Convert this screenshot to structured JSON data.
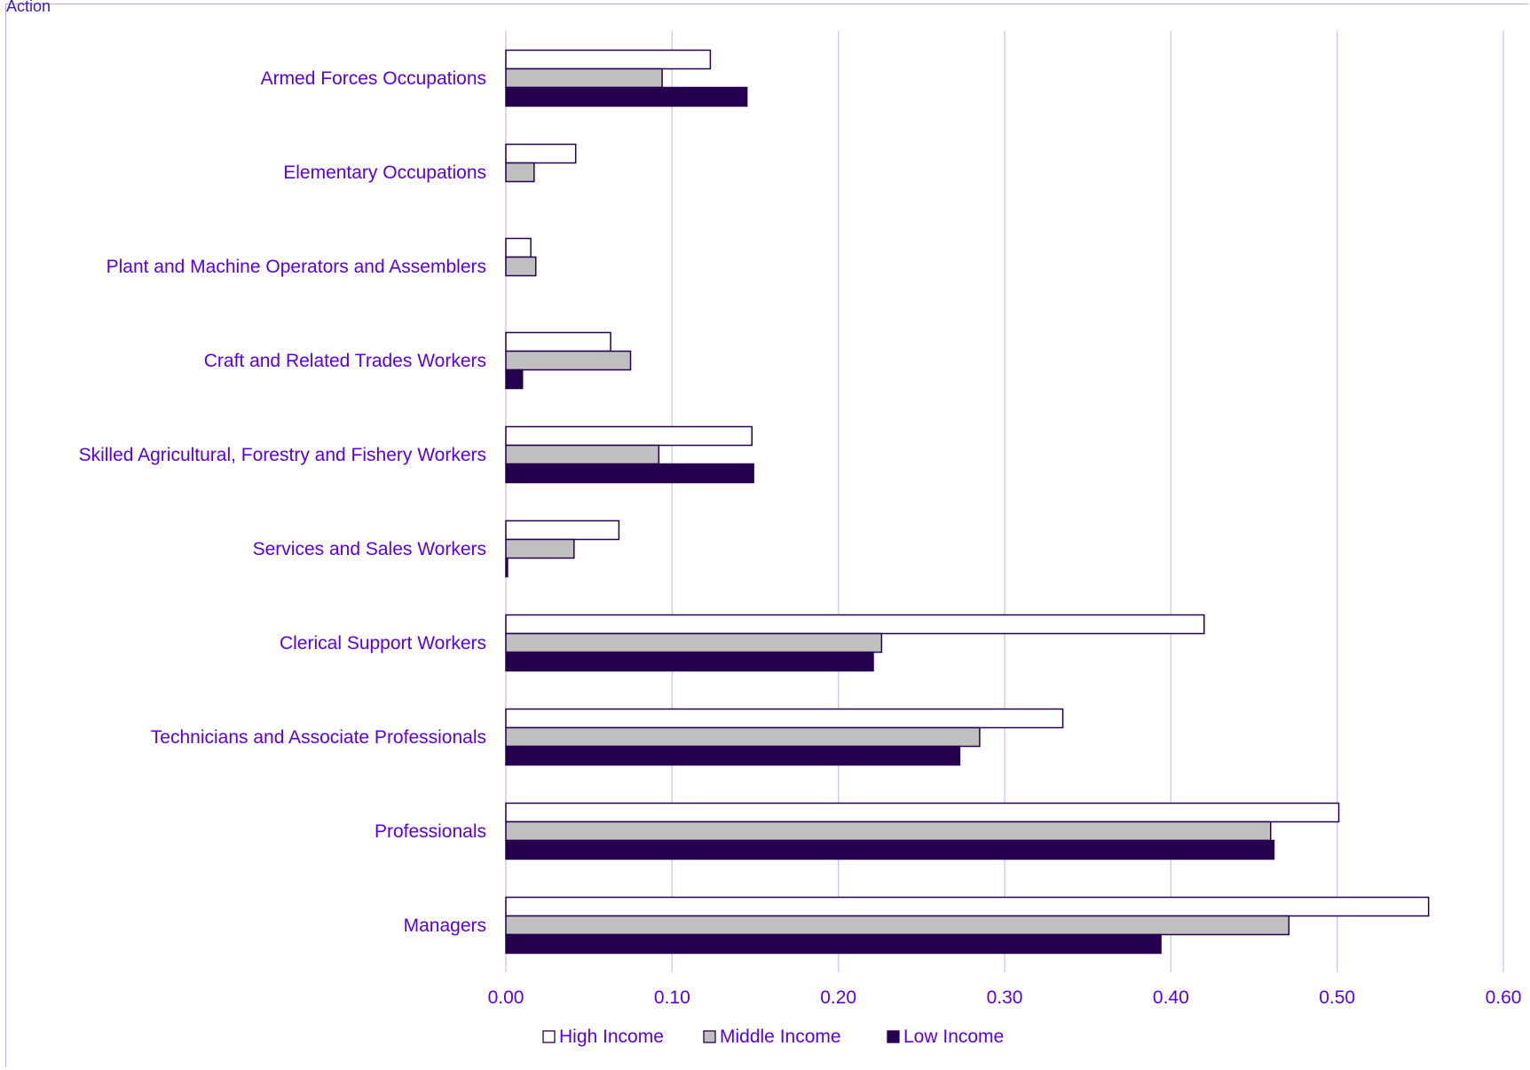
{
  "header": {
    "clipped_title": "Action"
  },
  "chart_data": {
    "type": "bar",
    "orientation": "horizontal",
    "categories": [
      "Armed Forces Occupations",
      "Elementary Occupations",
      "Plant and Machine Operators and Assemblers",
      "Craft and Related Trades Workers",
      "Skilled Agricultural, Forestry and Fishery Workers",
      "Services and Sales Workers",
      "Clerical Support Workers",
      "Technicians and Associate Professionals",
      "Professionals",
      "Managers"
    ],
    "series": [
      {
        "name": "High Income",
        "values": [
          0.123,
          0.042,
          0.015,
          0.063,
          0.148,
          0.068,
          0.42,
          0.335,
          0.501,
          0.555
        ]
      },
      {
        "name": "Middle Income",
        "values": [
          0.094,
          0.017,
          0.018,
          0.075,
          0.092,
          0.041,
          0.226,
          0.285,
          0.46,
          0.471
        ]
      },
      {
        "name": "Low Income",
        "values": [
          0.145,
          0.0,
          0.0,
          0.01,
          0.149,
          0.001,
          0.221,
          0.273,
          0.462,
          0.394
        ]
      }
    ],
    "xlim": [
      0,
      0.6
    ],
    "xticks": [
      "0.00",
      "0.10",
      "0.20",
      "0.30",
      "0.40",
      "0.50",
      "0.60"
    ],
    "grid": "vertical",
    "legend_position": "bottom",
    "colors": {
      "High Income": "#ffffff",
      "Middle Income": "#c0c0c0",
      "Low Income": "#24004f",
      "bar_outline": "#24004f",
      "gridline": "#d9c8f7",
      "label_text": "#5a00e6"
    }
  }
}
